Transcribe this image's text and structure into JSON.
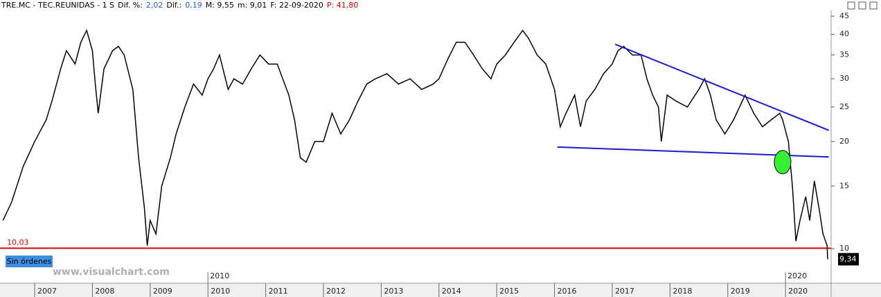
{
  "header": [
    {
      "text": "TRE.MC - TEC.REUNIDAS - 1 S",
      "color": "#000000"
    },
    {
      "text": "Dif. %:",
      "color": "#000000"
    },
    {
      "text": "2,02",
      "color": "#1e64c8"
    },
    {
      "text": "Dif.:",
      "color": "#000000"
    },
    {
      "text": "0,19",
      "color": "#1e64c8"
    },
    {
      "text": "M: 9,55",
      "color": "#000000"
    },
    {
      "text": "m: 9,01",
      "color": "#000000"
    },
    {
      "text": "F: 22-09-2020",
      "color": "#000000"
    },
    {
      "text": "P: 41,80",
      "color": "#e00000"
    }
  ],
  "button": "Sin órdenes",
  "watermark": "www.visualchart.com",
  "chart_data": {
    "type": "line",
    "log_scale": true,
    "color": "#000000",
    "x": [
      2006.45,
      2006.6,
      2006.8,
      2007.0,
      2007.2,
      2007.3,
      2007.45,
      2007.55,
      2007.7,
      2007.8,
      2007.9,
      2008.0,
      2008.05,
      2008.1,
      2008.2,
      2008.35,
      2008.45,
      2008.55,
      2008.7,
      2008.8,
      2008.9,
      2008.95,
      2009.0,
      2009.1,
      2009.2,
      2009.35,
      2009.45,
      2009.6,
      2009.75,
      2009.9,
      2010.0,
      2010.1,
      2010.2,
      2010.35,
      2010.45,
      2010.6,
      2010.75,
      2010.9,
      2011.05,
      2011.2,
      2011.4,
      2011.5,
      2011.6,
      2011.7,
      2011.85,
      2012.0,
      2012.15,
      2012.3,
      2012.45,
      2012.6,
      2012.75,
      2012.9,
      2013.1,
      2013.3,
      2013.5,
      2013.7,
      2013.9,
      2014.0,
      2014.15,
      2014.3,
      2014.45,
      2014.6,
      2014.75,
      2014.9,
      2015.0,
      2015.15,
      2015.3,
      2015.45,
      2015.55,
      2015.7,
      2015.85,
      2016.0,
      2016.1,
      2016.2,
      2016.35,
      2016.45,
      2016.55,
      2016.7,
      2016.85,
      2017.0,
      2017.1,
      2017.2,
      2017.35,
      2017.5,
      2017.6,
      2017.7,
      2017.8,
      2017.85,
      2017.95,
      2018.1,
      2018.3,
      2018.5,
      2018.6,
      2018.7,
      2018.8,
      2018.95,
      2019.1,
      2019.3,
      2019.45,
      2019.6,
      2019.75,
      2019.9,
      2019.95,
      2020.05,
      2020.12,
      2020.18,
      2020.25,
      2020.35,
      2020.42,
      2020.5,
      2020.58,
      2020.65,
      2020.72,
      2020.73
    ],
    "values": [
      12,
      13.5,
      17,
      20,
      23,
      26,
      32,
      36,
      33,
      38,
      41,
      36,
      29,
      24,
      32,
      36,
      37,
      35,
      28,
      18,
      13,
      10.2,
      12,
      11,
      15,
      18,
      21,
      25,
      29,
      27,
      30,
      32,
      35,
      28,
      30,
      29,
      32,
      35,
      33,
      33,
      27,
      23,
      18,
      17.5,
      20,
      20,
      24,
      21,
      23,
      26,
      29,
      30,
      31,
      29,
      30,
      28,
      29,
      30,
      34,
      38,
      38,
      35,
      32,
      30,
      33,
      35,
      38,
      41,
      39,
      35,
      33,
      28,
      22,
      24,
      27,
      22,
      26,
      28,
      31,
      33,
      36,
      37,
      35,
      35,
      30,
      27,
      25,
      20,
      27,
      26,
      25,
      28,
      30,
      27,
      23,
      21,
      23,
      27,
      24,
      22,
      23,
      24,
      23,
      20,
      15,
      10.5,
      12,
      14,
      12,
      15.5,
      13,
      11,
      10.2,
      9.34
    ],
    "xlim": [
      2006.4,
      2020.79
    ],
    "xticks": [
      2007,
      2008,
      2009,
      2010,
      2011,
      2012,
      2013,
      2014,
      2015,
      2016,
      2017,
      2018,
      2019,
      2020
    ],
    "decade_ticks": [
      2010,
      2020
    ],
    "ylim": [
      8.0,
      46.7
    ],
    "yticks": [
      10,
      15,
      20,
      25,
      30,
      35,
      40,
      45
    ],
    "trendlines": [
      {
        "color": "#1a1ad0",
        "x": [
          2017.05,
          2020.75
        ],
        "values": [
          37.5,
          21.5
        ]
      },
      {
        "color": "#1a1ad0",
        "x": [
          2016.05,
          2020.75
        ],
        "values": [
          19.3,
          18.1
        ]
      }
    ],
    "hline": {
      "value": 10.03,
      "label": "10,03",
      "color": "#e00000"
    },
    "marker": {
      "x": 2019.95,
      "value": 17.5,
      "color": "#33ee33"
    },
    "last_price": {
      "value": 9.34,
      "label": "9,34"
    }
  }
}
